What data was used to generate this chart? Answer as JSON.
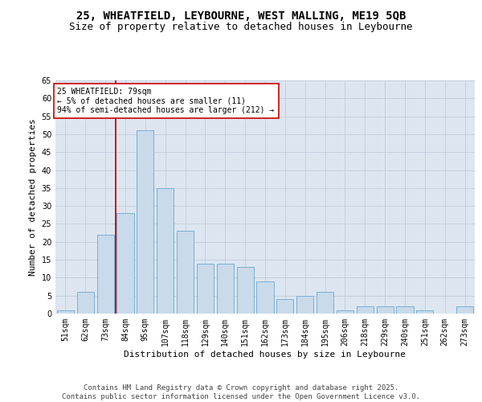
{
  "title_line1": "25, WHEATFIELD, LEYBOURNE, WEST MALLING, ME19 5QB",
  "title_line2": "Size of property relative to detached houses in Leybourne",
  "xlabel": "Distribution of detached houses by size in Leybourne",
  "ylabel": "Number of detached properties",
  "categories": [
    "51sqm",
    "62sqm",
    "73sqm",
    "84sqm",
    "95sqm",
    "107sqm",
    "118sqm",
    "129sqm",
    "140sqm",
    "151sqm",
    "162sqm",
    "173sqm",
    "184sqm",
    "195sqm",
    "206sqm",
    "218sqm",
    "229sqm",
    "240sqm",
    "251sqm",
    "262sqm",
    "273sqm"
  ],
  "values": [
    1,
    6,
    22,
    28,
    51,
    35,
    23,
    14,
    14,
    13,
    9,
    4,
    5,
    6,
    1,
    2,
    2,
    2,
    1,
    0,
    2
  ],
  "bar_color": "#c9daea",
  "bar_edge_color": "#7aafd4",
  "vline_index": 2,
  "vline_color": "#cc0000",
  "annotation_text": "25 WHEATFIELD: 79sqm\n← 5% of detached houses are smaller (11)\n94% of semi-detached houses are larger (212) →",
  "annotation_box_color": "#ffffff",
  "annotation_box_edge": "#cc0000",
  "ylim": [
    0,
    65
  ],
  "yticks": [
    0,
    5,
    10,
    15,
    20,
    25,
    30,
    35,
    40,
    45,
    50,
    55,
    60,
    65
  ],
  "grid_color": "#c5cfe0",
  "bg_color": "#dde6f0",
  "footer_line1": "Contains HM Land Registry data © Crown copyright and database right 2025.",
  "footer_line2": "Contains public sector information licensed under the Open Government Licence v3.0.",
  "title_fontsize": 10,
  "title2_fontsize": 9,
  "axis_label_fontsize": 8,
  "tick_fontsize": 7,
  "annotation_fontsize": 7,
  "footer_fontsize": 6.5
}
